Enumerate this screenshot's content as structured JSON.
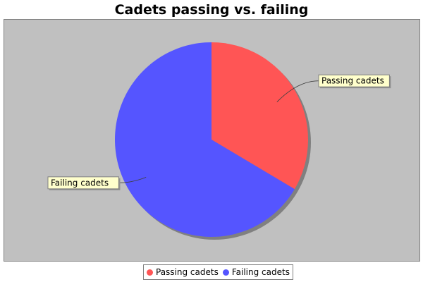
{
  "chart_data": {
    "type": "pie",
    "title": "Cadets passing vs. failing",
    "categories": [
      "Passing cadets",
      "Failing cadets"
    ],
    "values": [
      33.5,
      66.5
    ],
    "colors": [
      "#ff5555",
      "#5555ff"
    ],
    "background": "#c0c0c0",
    "label_background": "#ffffcc",
    "legend_position": "bottom"
  }
}
